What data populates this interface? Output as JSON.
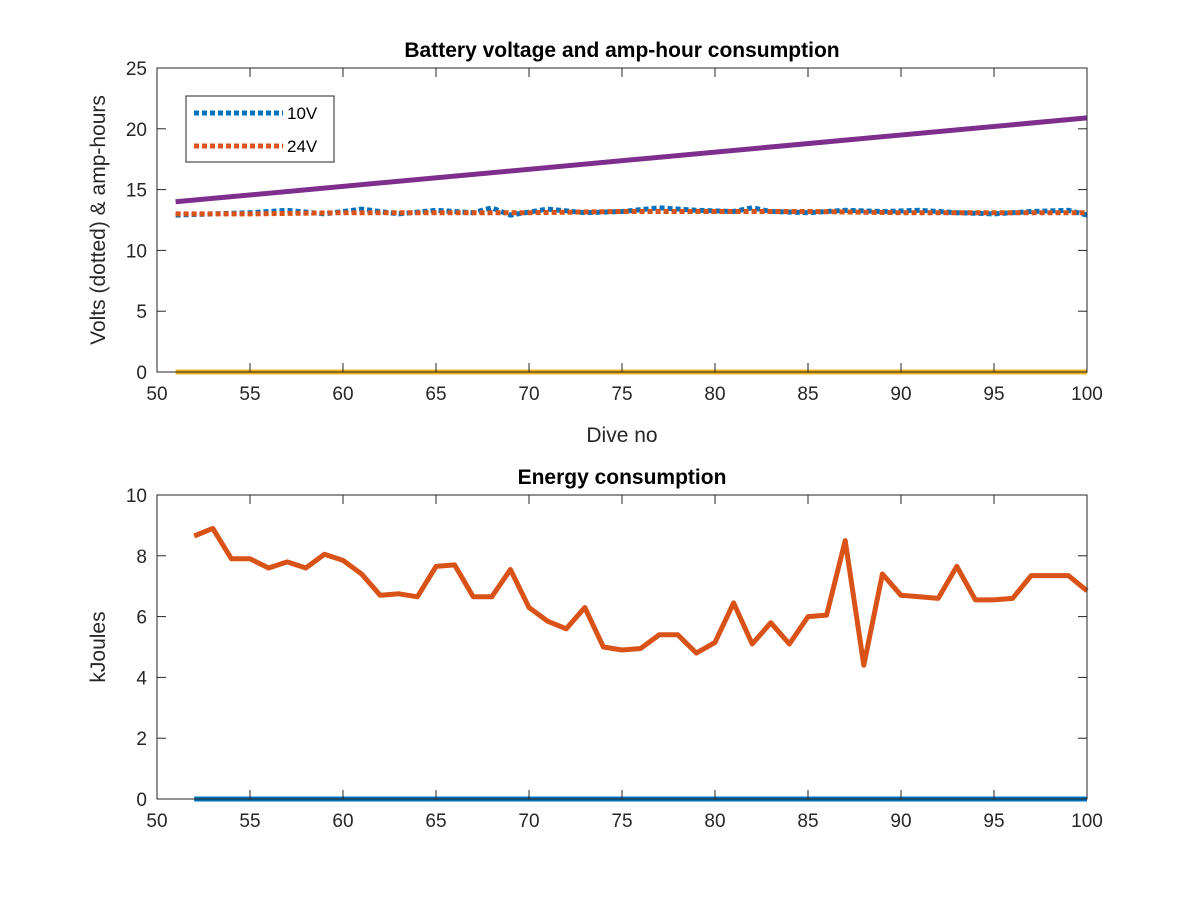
{
  "chart_data": [
    {
      "type": "line",
      "title": "Battery voltage and amp-hour consumption",
      "xlabel": "Dive no",
      "ylabel": "Volts (dotted) & amp-hours",
      "xlim": [
        50,
        100
      ],
      "ylim": [
        0,
        25
      ],
      "xticks": [
        50,
        55,
        60,
        65,
        70,
        75,
        80,
        85,
        90,
        95,
        100
      ],
      "yticks": [
        0,
        5,
        10,
        15,
        20,
        25
      ],
      "grid": false,
      "legend": "top-left",
      "series": [
        {
          "name": "10V",
          "style": "dotted",
          "color": "#0072BD",
          "x": [
            51,
            53,
            55,
            57,
            59,
            61,
            63,
            65,
            67,
            68,
            69,
            71,
            73,
            75,
            77,
            79,
            81,
            82,
            83,
            85,
            87,
            89,
            91,
            93,
            95,
            97,
            99,
            100
          ],
          "y": [
            12.9,
            13.0,
            13.1,
            13.3,
            13.0,
            13.4,
            13.0,
            13.3,
            13.1,
            13.5,
            12.9,
            13.4,
            13.1,
            13.2,
            13.5,
            13.3,
            13.2,
            13.5,
            13.2,
            13.1,
            13.3,
            13.2,
            13.3,
            13.1,
            13.0,
            13.2,
            13.3,
            12.9
          ]
        },
        {
          "name": "24V",
          "style": "dotted",
          "color": "#D95319",
          "x": [
            51,
            55,
            60,
            65,
            70,
            75,
            80,
            85,
            90,
            95,
            100
          ],
          "y": [
            13.0,
            13.0,
            13.1,
            13.1,
            13.1,
            13.2,
            13.2,
            13.2,
            13.1,
            13.1,
            13.1
          ]
        },
        {
          "style": "solid",
          "color": "#7E2F8E",
          "x": [
            51,
            100
          ],
          "y": [
            14.0,
            20.9
          ]
        },
        {
          "style": "solid",
          "color": "#EDB120",
          "x": [
            51,
            100
          ],
          "y": [
            0,
            0
          ]
        }
      ]
    },
    {
      "type": "line",
      "title": "Energy consumption",
      "xlabel": "",
      "ylabel": "kJoules",
      "xlim": [
        50,
        100
      ],
      "ylim": [
        0,
        10
      ],
      "xticks": [
        50,
        55,
        60,
        65,
        70,
        75,
        80,
        85,
        90,
        95,
        100
      ],
      "yticks": [
        0,
        2,
        4,
        6,
        8,
        10
      ],
      "grid": false,
      "series": [
        {
          "color": "#D95319",
          "x": [
            52,
            53,
            54,
            55,
            56,
            57,
            58,
            59,
            60,
            61,
            62,
            63,
            64,
            65,
            66,
            67,
            68,
            69,
            70,
            71,
            72,
            73,
            74,
            75,
            76,
            77,
            78,
            79,
            80,
            81,
            82,
            83,
            84,
            85,
            86,
            87,
            88,
            89,
            90,
            91,
            92,
            93,
            94,
            95,
            96,
            97,
            98,
            99,
            100
          ],
          "y": [
            8.65,
            8.9,
            7.9,
            7.9,
            7.6,
            7.8,
            7.6,
            8.05,
            7.85,
            7.4,
            6.7,
            6.75,
            6.65,
            7.65,
            7.7,
            6.65,
            6.65,
            7.55,
            6.3,
            5.85,
            5.6,
            6.3,
            5.0,
            4.9,
            4.95,
            5.4,
            5.4,
            4.8,
            5.15,
            6.45,
            5.1,
            5.8,
            5.1,
            6.0,
            6.05,
            8.5,
            4.4,
            7.4,
            6.7,
            6.65,
            6.6,
            7.65,
            6.55,
            6.55,
            6.6,
            7.35,
            7.35,
            7.35,
            6.85
          ]
        },
        {
          "color": "#0072BD",
          "x": [
            52,
            100
          ],
          "y": [
            0,
            0
          ]
        }
      ]
    }
  ]
}
